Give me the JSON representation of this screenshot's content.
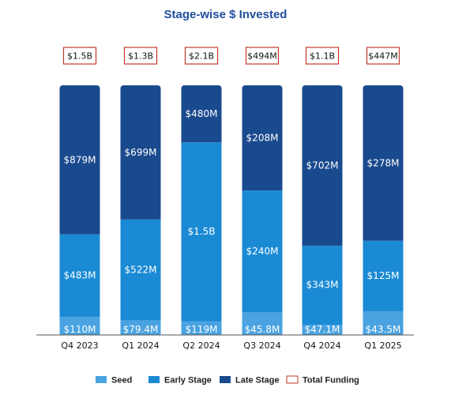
{
  "chart_data": {
    "type": "bar",
    "stacked": true,
    "title": "Stage-wise $ Invested",
    "categories": [
      "Q4 2023",
      "Q1 2024",
      "Q2 2024",
      "Q3 2024",
      "Q4 2024",
      "Q1 2025"
    ],
    "series": [
      {
        "name": "Seed",
        "color": "#4aa3e0",
        "values": [
          110,
          79.4,
          119,
          45.8,
          47.1,
          43.5
        ],
        "labels": [
          "$110M",
          "$79.4M",
          "$119M",
          "$45.8M",
          "$47.1M",
          "$43.5M"
        ]
      },
      {
        "name": "Early Stage",
        "color": "#1b8ad4",
        "values": [
          483,
          522,
          1500,
          240,
          343,
          125
        ],
        "labels": [
          "$483M",
          "$522M",
          "$1.5B",
          "$240M",
          "$343M",
          "$125M"
        ]
      },
      {
        "name": "Late Stage",
        "color": "#1a4a8e",
        "values": [
          879,
          699,
          480,
          208,
          702,
          278
        ],
        "labels": [
          "$879M",
          "$699M",
          "$480M",
          "$208M",
          "$702M",
          "$278M"
        ]
      }
    ],
    "totals": {
      "name": "Total Funding",
      "labels": [
        "$1.5B",
        "$1.3B",
        "$2.1B",
        "$494M",
        "$1.1B",
        "$447M"
      ],
      "border_color": "#c0392b"
    },
    "units": "USD millions",
    "normalized_to_100_percent": true,
    "legend_position": "bottom",
    "grid": false,
    "title_color": "#1f4e9c"
  }
}
